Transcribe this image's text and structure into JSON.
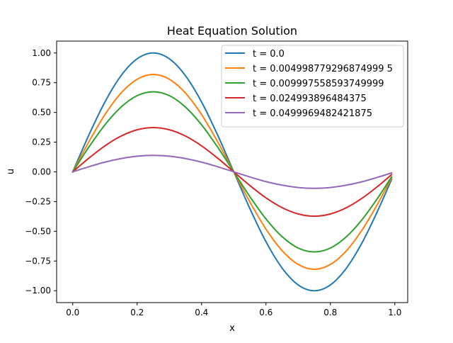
{
  "chart_data": {
    "type": "line",
    "title": "Heat Equation Solution",
    "xlabel": "x",
    "ylabel": "u",
    "xlim": [
      -0.05,
      1.04
    ],
    "ylim": [
      -1.1,
      1.1
    ],
    "xticks": [
      0.0,
      0.2,
      0.4,
      0.6,
      0.8,
      1.0
    ],
    "xtick_labels": [
      "0.0",
      "0.2",
      "0.4",
      "0.6",
      "0.8",
      "1.0"
    ],
    "yticks": [
      -1.0,
      -0.75,
      -0.5,
      -0.25,
      0.0,
      0.25,
      0.5,
      0.75,
      1.0
    ],
    "ytick_labels": [
      "−1.00",
      "−0.75",
      "−0.50",
      "−0.25",
      "0.00",
      "0.25",
      "0.50",
      "0.75",
      "1.00"
    ],
    "grid": false,
    "legend_position": "top-right",
    "x": [
      0.0,
      0.05,
      0.1,
      0.15,
      0.2,
      0.25,
      0.3,
      0.35,
      0.4,
      0.45,
      0.5,
      0.55,
      0.6,
      0.65,
      0.7,
      0.75,
      0.8,
      0.85,
      0.9,
      0.95,
      0.99
    ],
    "series": [
      {
        "name": "t = 0.0",
        "color": "#1f77b4",
        "values": [
          0.0,
          0.309,
          0.588,
          0.809,
          0.951,
          1.0,
          0.951,
          0.809,
          0.588,
          0.309,
          0.0,
          -0.309,
          -0.588,
          -0.809,
          -0.951,
          -1.0,
          -0.951,
          -0.809,
          -0.588,
          -0.309,
          -0.063
        ]
      },
      {
        "name": "t = 0.004998779296874999 5",
        "color": "#ff7f0e",
        "values": [
          0.0,
          0.253,
          0.482,
          0.663,
          0.779,
          0.82,
          0.779,
          0.663,
          0.482,
          0.253,
          0.0,
          -0.253,
          -0.482,
          -0.663,
          -0.779,
          -0.82,
          -0.779,
          -0.663,
          -0.482,
          -0.253,
          -0.05
        ]
      },
      {
        "name": "t = 0.009997558593749999",
        "color": "#2ca02c",
        "values": [
          0.0,
          0.208,
          0.396,
          0.545,
          0.641,
          0.674,
          0.641,
          0.545,
          0.396,
          0.208,
          0.0,
          -0.208,
          -0.396,
          -0.545,
          -0.641,
          -0.674,
          -0.641,
          -0.545,
          -0.396,
          -0.208,
          -0.042
        ]
      },
      {
        "name": "t = 0.024993896484375",
        "color": "#d62728",
        "values": [
          0.0,
          0.115,
          0.219,
          0.301,
          0.354,
          0.373,
          0.354,
          0.301,
          0.219,
          0.115,
          0.0,
          -0.115,
          -0.219,
          -0.301,
          -0.354,
          -0.373,
          -0.354,
          -0.301,
          -0.219,
          -0.115,
          -0.023
        ]
      },
      {
        "name": "t = 0.0499969482421875",
        "color": "#9467bd",
        "values": [
          0.0,
          0.043,
          0.082,
          0.112,
          0.132,
          0.139,
          0.132,
          0.112,
          0.082,
          0.043,
          0.0,
          -0.043,
          -0.082,
          -0.112,
          -0.132,
          -0.139,
          -0.132,
          -0.112,
          -0.082,
          -0.043,
          -0.009
        ]
      }
    ]
  }
}
